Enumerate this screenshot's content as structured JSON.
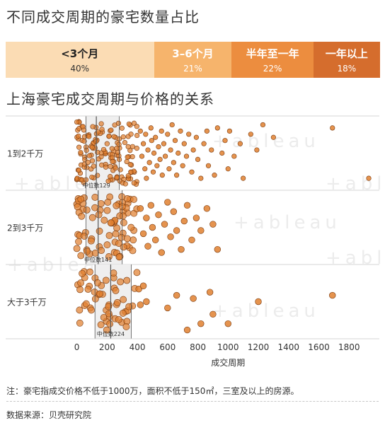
{
  "title": "不同成交周期的豪宅数量占比",
  "share_bar": [
    {
      "label": "<3个月",
      "percent": "40%",
      "share": 40,
      "bg": "#fbdcb4",
      "label_color": "#222222",
      "pct_color": "#333333"
    },
    {
      "label": "3–6个月",
      "percent": "21%",
      "share": 21,
      "bg": "#f6b46c",
      "label_color": "#ffffff",
      "pct_color": "#ffffff"
    },
    {
      "label": "半年至一年",
      "percent": "22%",
      "share": 22,
      "bg": "#ec8d3f",
      "label_color": "#ffffff",
      "pct_color": "#ffffff"
    },
    {
      "label": "一年以上",
      "percent": "18%",
      "share": 18,
      "bg": "#d56d2d",
      "label_color": "#ffffff",
      "pct_color": "#ffffff"
    }
  ],
  "subtitle": "上海豪宅成交周期与价格的关系",
  "chart_data": {
    "type": "scatter",
    "xlabel": "成交周期",
    "xlim": [
      -40,
      2000
    ],
    "xticks": [
      "0",
      "200",
      "400",
      "600",
      "800",
      "1000",
      "1200",
      "1400",
      "1600",
      "1800"
    ],
    "categories": [
      "1到2千万",
      "2到3千万",
      "大于3千万"
    ],
    "point_color": "#e0802f",
    "median_color": "#555555",
    "rows": [
      {
        "name": "1到2千万",
        "median": 129,
        "median_label": "中位数129",
        "band_start": 60,
        "band_end": 280,
        "dense_range": [
          0,
          400
        ],
        "dense_count": 150,
        "points": [
          [
            420,
            0.15
          ],
          [
            430,
            0.55
          ],
          [
            440,
            0.35
          ],
          [
            450,
            0.75
          ],
          [
            455,
            0.2
          ],
          [
            460,
            0.9
          ],
          [
            470,
            0.45
          ],
          [
            480,
            0.65
          ],
          [
            490,
            0.1
          ],
          [
            495,
            0.3
          ],
          [
            505,
            0.8
          ],
          [
            510,
            0.5
          ],
          [
            520,
            0.25
          ],
          [
            530,
            0.7
          ],
          [
            540,
            0.4
          ],
          [
            550,
            0.6
          ],
          [
            560,
            0.15
          ],
          [
            565,
            0.85
          ],
          [
            575,
            0.35
          ],
          [
            585,
            0.55
          ],
          [
            600,
            0.2
          ],
          [
            610,
            0.75
          ],
          [
            620,
            0.45
          ],
          [
            630,
            0.05
          ],
          [
            640,
            0.65
          ],
          [
            650,
            0.3
          ],
          [
            660,
            0.85
          ],
          [
            670,
            0.5
          ],
          [
            685,
            0.15
          ],
          [
            700,
            0.7
          ],
          [
            710,
            0.35
          ],
          [
            725,
            0.55
          ],
          [
            740,
            0.2
          ],
          [
            760,
            0.8
          ],
          [
            770,
            0.45
          ],
          [
            790,
            0.25
          ],
          [
            800,
            0.6
          ],
          [
            820,
            0.9
          ],
          [
            840,
            0.35
          ],
          [
            860,
            0.15
          ],
          [
            870,
            0.7
          ],
          [
            890,
            0.45
          ],
          [
            910,
            0.85
          ],
          [
            930,
            0.1
          ],
          [
            960,
            0.5
          ],
          [
            980,
            0.3
          ],
          [
            1000,
            0.75
          ],
          [
            1010,
            0.15
          ],
          [
            1040,
            0.55
          ],
          [
            1080,
            0.35
          ],
          [
            1100,
            0.9
          ],
          [
            1150,
            0.2
          ],
          [
            1190,
            0.45
          ],
          [
            1230,
            0.05
          ],
          [
            1300,
            0.25
          ],
          [
            1690,
            0.1
          ],
          [
            1930,
            0.9
          ]
        ]
      },
      {
        "name": "2到3千万",
        "median": 141,
        "median_label": "中位数141",
        "band_start": 60,
        "band_end": 300,
        "dense_range": [
          0,
          400
        ],
        "dense_count": 80,
        "points": [
          [
            420,
            0.2
          ],
          [
            440,
            0.6
          ],
          [
            460,
            0.35
          ],
          [
            470,
            0.8
          ],
          [
            490,
            0.15
          ],
          [
            500,
            0.5
          ],
          [
            520,
            0.7
          ],
          [
            540,
            0.3
          ],
          [
            560,
            0.9
          ],
          [
            580,
            0.45
          ],
          [
            600,
            0.1
          ],
          [
            620,
            0.65
          ],
          [
            640,
            0.25
          ],
          [
            660,
            0.55
          ],
          [
            690,
            0.85
          ],
          [
            710,
            0.4
          ],
          [
            730,
            0.15
          ],
          [
            760,
            0.7
          ],
          [
            790,
            0.35
          ],
          [
            820,
            0.55
          ],
          [
            860,
            0.2
          ],
          [
            900,
            0.45
          ],
          [
            930,
            0.85
          ]
        ]
      },
      {
        "name": "大于3千万",
        "median": 224,
        "median_label": "中位数224",
        "band_start": 120,
        "band_end": 360,
        "dense_range": [
          0,
          400
        ],
        "dense_count": 55,
        "points": [
          [
            410,
            0.3
          ],
          [
            420,
            0.55
          ],
          [
            440,
            0.25
          ],
          [
            460,
            0.5
          ],
          [
            600,
            0.6
          ],
          [
            660,
            0.4
          ],
          [
            730,
            0.95
          ],
          [
            770,
            0.45
          ],
          [
            820,
            0.85
          ],
          [
            880,
            0.35
          ],
          [
            900,
            0.7
          ],
          [
            1000,
            0.85
          ],
          [
            1200,
            0.5
          ],
          [
            1690,
            0.4
          ]
        ]
      }
    ]
  },
  "note": "注：豪宅指成交价格不低于1000万，面积不低于150㎡，三室及以上的房源。",
  "source": "数据来源：贝壳研究院",
  "watermark": "+ableau"
}
